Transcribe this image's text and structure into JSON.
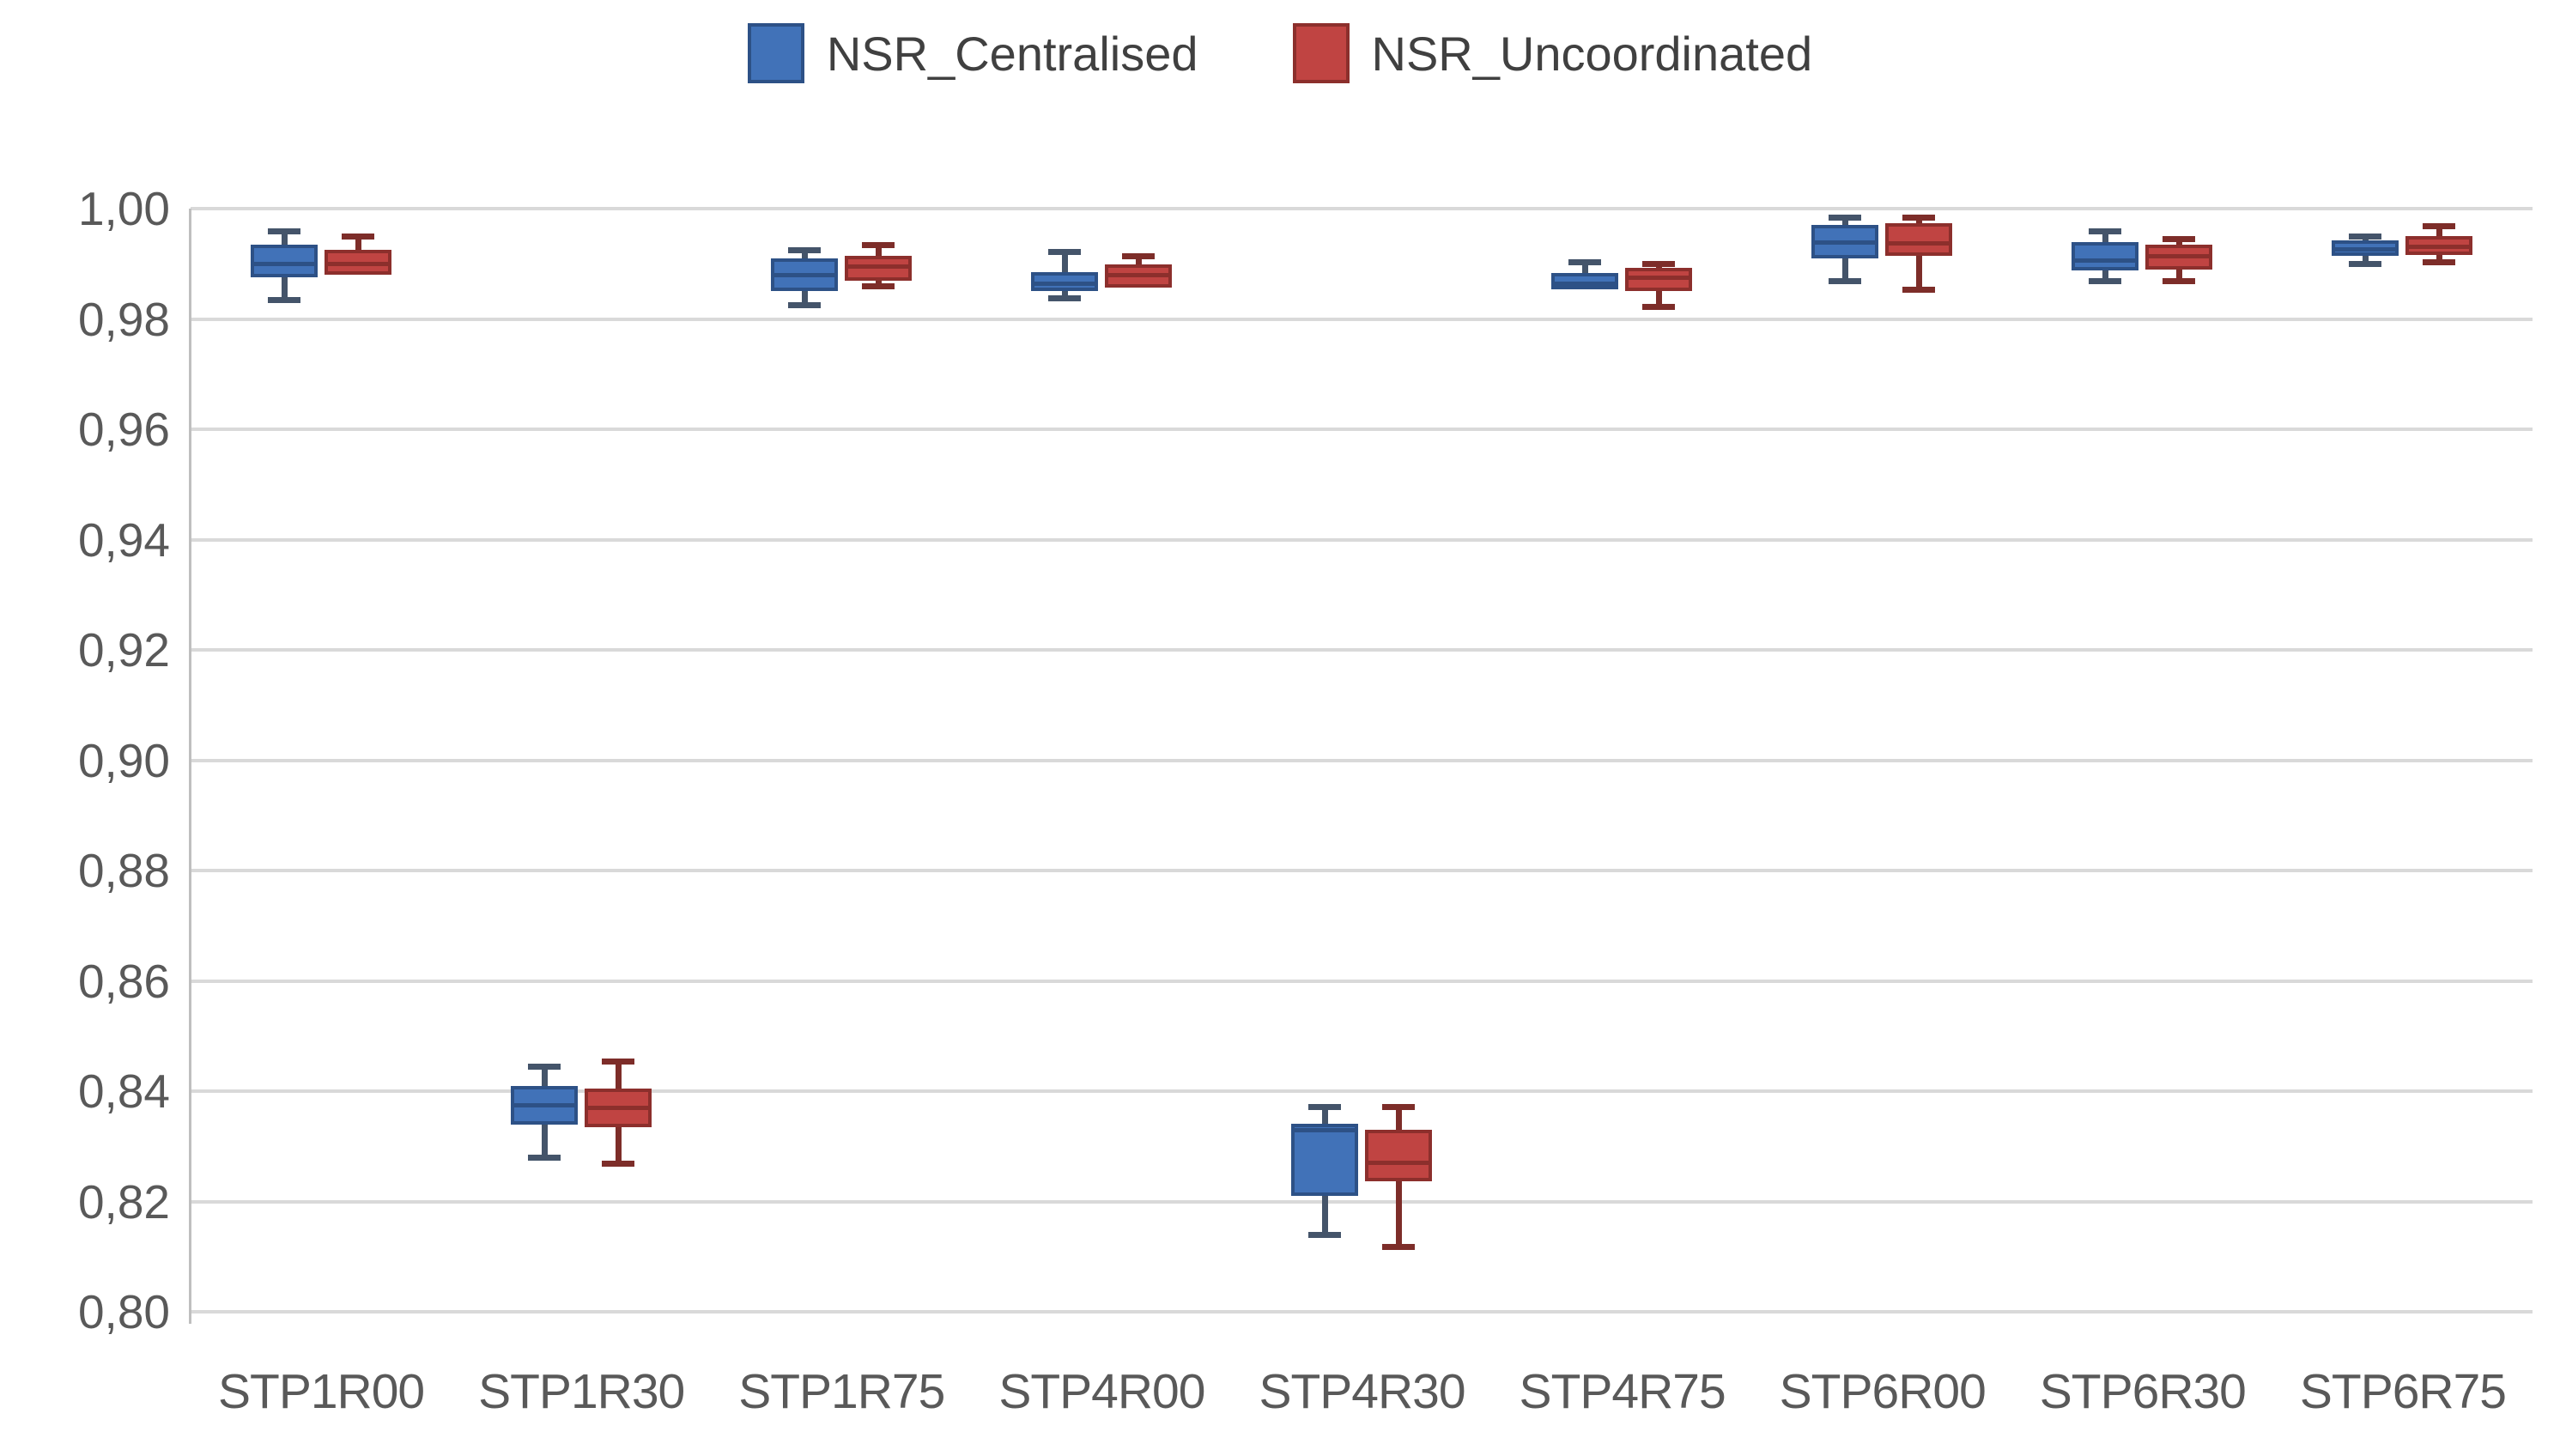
{
  "chart_data": {
    "type": "boxplot",
    "title": "",
    "categories": [
      "STP1R00",
      "STP1R30",
      "STP1R75",
      "STP4R00",
      "STP4R30",
      "STP4R75",
      "STP6R00",
      "STP6R30",
      "STP6R75"
    ],
    "y_axis": {
      "min": 0.8,
      "max": 1.0,
      "step": 0.02,
      "tick_labels": [
        "1,00",
        "0,98",
        "0,96",
        "0,94",
        "0,92",
        "0,90",
        "0,88",
        "0,86",
        "0,84",
        "0,82",
        "0,80"
      ],
      "decimal_separator": ","
    },
    "grid": true,
    "legend_position": "top",
    "legend": [
      {
        "label": "NSR_Centralised",
        "color": "#4172b8"
      },
      {
        "label": "NSR_Uncoordinated",
        "color": "#c04442"
      }
    ],
    "series": [
      {
        "name": "NSR_Centralised",
        "fill": "#4172b8",
        "border": "#2d5186",
        "whisker": "#44546a",
        "boxes": [
          {
            "min": 0.9835,
            "q1": 0.9875,
            "median": 0.99,
            "q3": 0.9935,
            "max": 0.996
          },
          {
            "min": 0.828,
            "q1": 0.834,
            "median": 0.8375,
            "q3": 0.841,
            "max": 0.8445
          },
          {
            "min": 0.9825,
            "q1": 0.985,
            "median": 0.988,
            "q3": 0.991,
            "max": 0.9925
          },
          {
            "min": 0.9838,
            "q1": 0.985,
            "median": 0.9865,
            "q3": 0.9885,
            "max": 0.9922
          },
          {
            "min": 0.814,
            "q1": 0.821,
            "median": 0.833,
            "q3": 0.8341,
            "max": 0.8372
          },
          {
            "min": 0.9853,
            "q1": 0.9853,
            "median": 0.9865,
            "q3": 0.9884,
            "max": 0.9904
          },
          {
            "min": 0.987,
            "q1": 0.9909,
            "median": 0.994,
            "q3": 0.997,
            "max": 0.9985
          },
          {
            "min": 0.987,
            "q1": 0.9888,
            "median": 0.9907,
            "q3": 0.994,
            "max": 0.996
          },
          {
            "min": 0.99,
            "q1": 0.9915,
            "median": 0.9927,
            "q3": 0.9943,
            "max": 0.995
          }
        ]
      },
      {
        "name": "NSR_Uncoordinated",
        "fill": "#c04442",
        "border": "#8c2f2c",
        "whisker": "#7d2d29",
        "boxes": [
          {
            "min": 0.988,
            "q1": 0.988,
            "median": 0.99,
            "q3": 0.9925,
            "max": 0.995
          },
          {
            "min": 0.827,
            "q1": 0.8335,
            "median": 0.837,
            "q3": 0.8405,
            "max": 0.8455
          },
          {
            "min": 0.986,
            "q1": 0.987,
            "median": 0.9895,
            "q3": 0.9915,
            "max": 0.9935
          },
          {
            "min": 0.9857,
            "q1": 0.9857,
            "median": 0.988,
            "q3": 0.9899,
            "max": 0.9914
          },
          {
            "min": 0.8118,
            "q1": 0.8237,
            "median": 0.8271,
            "q3": 0.833,
            "max": 0.8372
          },
          {
            "min": 0.9823,
            "q1": 0.985,
            "median": 0.9875,
            "q3": 0.9893,
            "max": 0.9901
          },
          {
            "min": 0.9853,
            "q1": 0.9915,
            "median": 0.9938,
            "q3": 0.9974,
            "max": 0.9985
          },
          {
            "min": 0.987,
            "q1": 0.989,
            "median": 0.9915,
            "q3": 0.9935,
            "max": 0.9946
          },
          {
            "min": 0.9904,
            "q1": 0.9916,
            "median": 0.9932,
            "q3": 0.995,
            "max": 0.9969
          }
        ]
      }
    ]
  }
}
